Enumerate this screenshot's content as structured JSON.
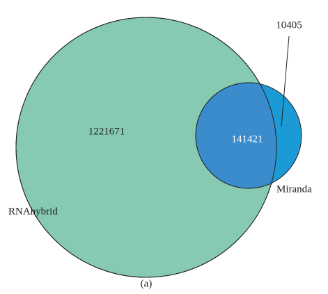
{
  "chart_data": {
    "type": "venn",
    "sets": [
      {
        "name": "RNAhybrid",
        "color": "#86cbb1"
      },
      {
        "name": "Miranda",
        "color": "#1c9ad6"
      }
    ],
    "overlap_color": "#3a8ccd",
    "values": [
      1221671,
      141421,
      10405
    ],
    "caption": "(a)"
  }
}
